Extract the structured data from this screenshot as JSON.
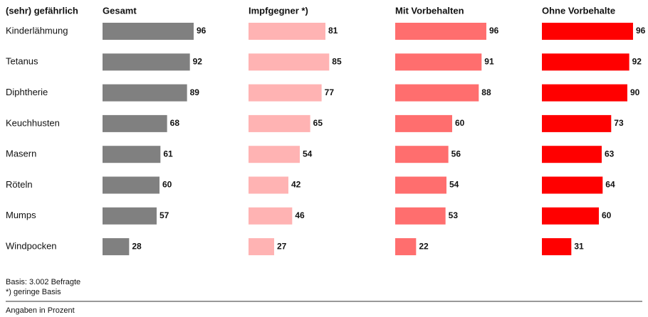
{
  "chart_data": {
    "type": "bar",
    "orientation": "horizontal",
    "category_header": "(sehr) gefährlich",
    "categories": [
      "Kinderlähmung",
      "Tetanus",
      "Diphtherie",
      "Keuchhusten",
      "Masern",
      "Röteln",
      "Mumps",
      "Windpocken"
    ],
    "series": [
      {
        "name": "Gesamt",
        "color": "#808080",
        "values": [
          96,
          92,
          89,
          68,
          61,
          60,
          57,
          28
        ]
      },
      {
        "name": "Impfgegner *)",
        "color": "#ffb3b3",
        "values": [
          81,
          85,
          77,
          65,
          54,
          42,
          46,
          27
        ]
      },
      {
        "name": "Mit Vorbehalten",
        "color": "#ff6e6e",
        "values": [
          96,
          91,
          88,
          60,
          56,
          54,
          53,
          22
        ]
      },
      {
        "name": "Ohne Vorbehalte",
        "color": "#ff0000",
        "values": [
          96,
          92,
          90,
          73,
          63,
          64,
          60,
          31
        ]
      }
    ],
    "notes": [
      "Basis: 3.002 Befragte",
      "*) geringe Basis"
    ],
    "footer": "Angaben in Prozent"
  }
}
